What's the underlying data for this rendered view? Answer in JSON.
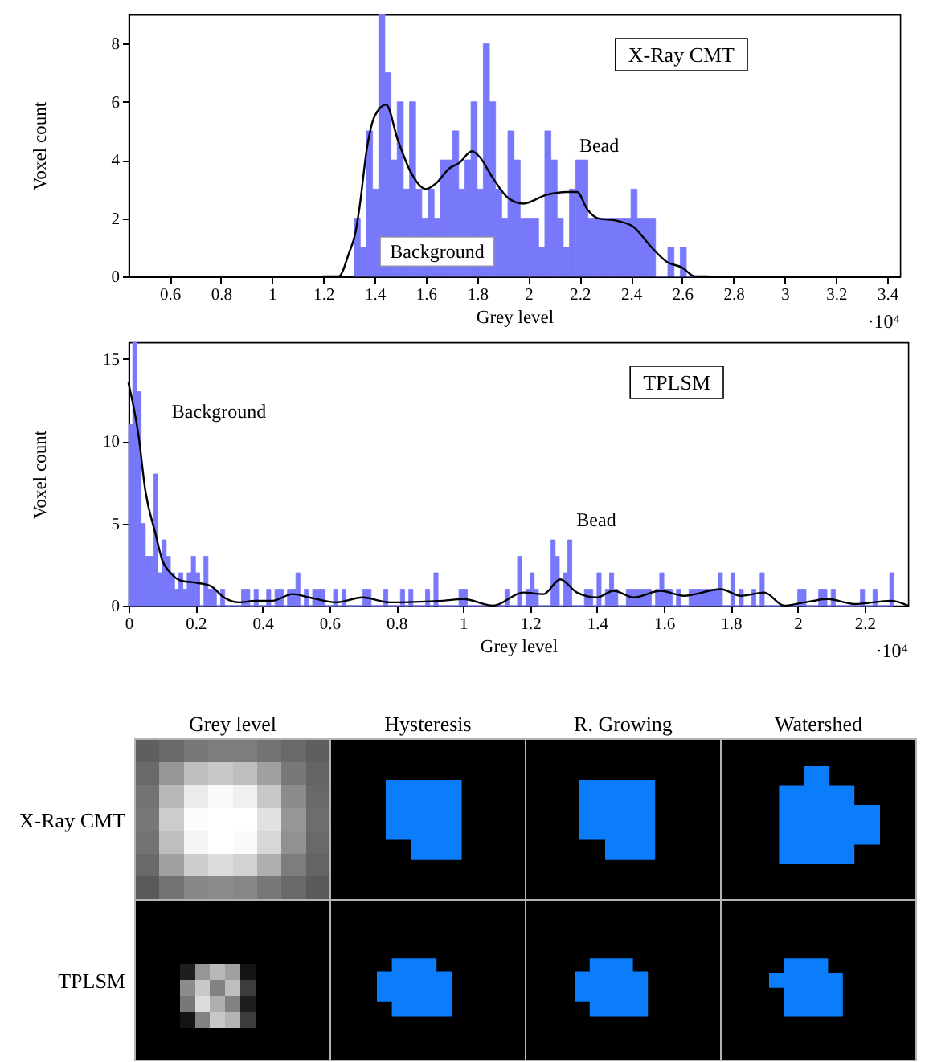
{
  "chart_data": [
    {
      "type": "histogram",
      "xlabel": "Grey level",
      "ylabel": "Voxel count",
      "xlim": [
        0.44,
        3.45
      ],
      "ylim": [
        0,
        9
      ],
      "xticks": [
        0.6,
        0.8,
        1,
        1.2,
        1.4,
        1.6,
        1.8,
        2,
        2.2,
        2.4,
        2.6,
        2.8,
        3,
        3.2,
        3.4
      ],
      "yticks": [
        0,
        2,
        4,
        6,
        8
      ],
      "bins": [
        1.32,
        1.344,
        1.368,
        1.392,
        1.416,
        1.44,
        1.464,
        1.488,
        1.512,
        1.536,
        1.56,
        1.584,
        1.608,
        1.632,
        1.656,
        1.68,
        1.704,
        1.728,
        1.752,
        1.776,
        1.8,
        1.824,
        1.848,
        1.872,
        1.896,
        1.92,
        1.944,
        1.968,
        1.992,
        2.016,
        2.04,
        2.064,
        2.088,
        2.112,
        2.136,
        2.16,
        2.184,
        2.208,
        2.232,
        2.256,
        2.28,
        2.304,
        2.328,
        2.352,
        2.376,
        2.4,
        2.424,
        2.448,
        2.472,
        2.496,
        2.52,
        2.544,
        2.568,
        2.592,
        2.616,
        2.64
      ],
      "series": [
        {
          "type": "histogram",
          "color": "#7878fa",
          "values": [
            2,
            1,
            5,
            3,
            9,
            7,
            4,
            6,
            3,
            6,
            3,
            2,
            3,
            2,
            4,
            4,
            5,
            3,
            4,
            6,
            3,
            8,
            6,
            3,
            2,
            5,
            4,
            2,
            2,
            2,
            1,
            5,
            4,
            2,
            1,
            3,
            4,
            4,
            2,
            2,
            2,
            2,
            2,
            2,
            2,
            3,
            2,
            2,
            2,
            0,
            0,
            1,
            0,
            1,
            0
          ]
        },
        {
          "type": "line",
          "color": "#000000",
          "x": [
            1.2,
            1.26,
            1.3,
            1.325,
            1.34,
            1.37,
            1.4,
            1.445,
            1.49,
            1.54,
            1.6,
            1.64,
            1.69,
            1.73,
            1.78,
            1.81,
            1.86,
            1.92,
            1.98,
            2.07,
            2.15,
            2.19,
            2.23,
            2.27,
            2.35,
            2.41,
            2.48,
            2.54,
            2.6,
            2.65,
            2.7
          ],
          "values": [
            0,
            0,
            0.8,
            1.5,
            2.3,
            4.4,
            5.5,
            5.9,
            4.7,
            3.6,
            3.0,
            3.2,
            3.7,
            3.9,
            4.3,
            4.1,
            3.4,
            2.7,
            2.5,
            2.8,
            2.9,
            2.9,
            2.3,
            2.0,
            1.9,
            1.7,
            1.0,
            0.5,
            0.3,
            0,
            0
          ]
        }
      ],
      "annotations": [
        "X-Ray CMT",
        "Bead",
        "Background",
        "·10⁴"
      ]
    },
    {
      "type": "histogram",
      "xlabel": "Grey level",
      "ylabel": "Voxel count",
      "xlim": [
        0,
        2.33
      ],
      "ylim": [
        0,
        16
      ],
      "xticks": [
        0,
        0.2,
        0.4,
        0.6,
        0.8,
        1,
        1.2,
        1.4,
        1.6,
        1.8,
        2,
        2.2
      ],
      "yticks": [
        0,
        5,
        10,
        15
      ],
      "bins": [
        0,
        0.0125,
        0.025,
        0.0375,
        0.05,
        0.0625,
        0.075,
        0.0875,
        0.1,
        0.1125,
        0.125,
        0.1375,
        0.15,
        0.1625,
        0.175,
        0.1875,
        0.2,
        0.2125,
        0.225,
        0.2375,
        0.25,
        0.2625,
        0.275,
        0.2875,
        0.3,
        0.3125,
        0.325,
        0.3375,
        0.35,
        0.3625,
        0.375,
        0.3875,
        0.4,
        0.4125,
        0.425,
        0.4375,
        0.45,
        0.4625,
        0.475,
        0.4875,
        0.5,
        0.5125,
        0.525,
        0.5375,
        0.55,
        0.5625,
        0.575,
        0.5875,
        0.6,
        0.6125,
        0.625,
        0.6375,
        0.65,
        0.6625,
        0.675,
        0.6875,
        0.7,
        0.7125,
        0.725,
        0.7375,
        0.75,
        0.7625,
        0.775,
        0.7875,
        0.8,
        0.8125,
        0.825,
        0.8375,
        0.85,
        0.8625,
        0.875,
        0.8875,
        0.9,
        0.9125,
        0.925,
        0.9375,
        0.95,
        0.9625,
        0.975,
        0.9875,
        1,
        1.0125,
        1.025,
        1.0375,
        1.05,
        1.0625,
        1.075,
        1.0875,
        1.1,
        1.1125,
        1.125,
        1.1375,
        1.15,
        1.1625,
        1.175,
        1.1875,
        1.2,
        1.2125,
        1.225,
        1.2375,
        1.25,
        1.2625,
        1.275,
        1.2875,
        1.3,
        1.3125,
        1.325,
        1.3375,
        1.35,
        1.3625,
        1.375,
        1.3875,
        1.4,
        1.4125,
        1.425,
        1.4375,
        1.45,
        1.4625,
        1.475,
        1.4875,
        1.5,
        1.5125,
        1.525,
        1.5375,
        1.55,
        1.5625,
        1.575,
        1.5875,
        1.6,
        1.6125,
        1.625,
        1.6375,
        1.65,
        1.6625,
        1.675,
        1.6875,
        1.7,
        1.7125,
        1.725,
        1.7375,
        1.75,
        1.7625,
        1.775,
        1.7875,
        1.8,
        1.8125,
        1.825,
        1.8375,
        1.85,
        1.8625,
        1.875,
        1.8875,
        1.9,
        1.9125,
        1.925,
        1.9375,
        1.95,
        1.9625,
        1.975,
        1.9875,
        2,
        2.0125,
        2.025,
        2.0375,
        2.05,
        2.0625,
        2.075,
        2.0875,
        2.1,
        2.1125,
        2.125,
        2.1375,
        2.15,
        2.1625,
        2.175,
        2.1875,
        2.2,
        2.2125,
        2.225,
        2.2375,
        2.25,
        2.2625,
        2.275,
        2.2875
      ],
      "series": [
        {
          "type": "histogram",
          "color": "#7878fa",
          "values": [
            11,
            16,
            13,
            5,
            3,
            3,
            8,
            2,
            4,
            3,
            2,
            1,
            2,
            1,
            2,
            3,
            2,
            0,
            3,
            1,
            1,
            0,
            1,
            0,
            0,
            0,
            0,
            1,
            1,
            0,
            1,
            0,
            0,
            1,
            0,
            1,
            1,
            0,
            1,
            1,
            2,
            0,
            1,
            0,
            1,
            1,
            1,
            0,
            0,
            1,
            0,
            1,
            0,
            0,
            0,
            0,
            1,
            1,
            0,
            0,
            0,
            1,
            0,
            0,
            0,
            1,
            0,
            1,
            0,
            0,
            0,
            1,
            0,
            2,
            0,
            0,
            0,
            0,
            0,
            1,
            1,
            0,
            0,
            0,
            0,
            0,
            0,
            0,
            0,
            0,
            1,
            0,
            0,
            3,
            0,
            1,
            2,
            1,
            0,
            0,
            0,
            4,
            3,
            0,
            2,
            4,
            0,
            0,
            0,
            1,
            1,
            0,
            2,
            0,
            1,
            2,
            1,
            0,
            0,
            1,
            1,
            1,
            1,
            1,
            1,
            0,
            1,
            2,
            1,
            1,
            0,
            1,
            0,
            0,
            1,
            1,
            1,
            1,
            1,
            1,
            1,
            2,
            0,
            0,
            2,
            0,
            1,
            0,
            0,
            1,
            0,
            2,
            0,
            0,
            0,
            0,
            0,
            0,
            0,
            0,
            1,
            1,
            0,
            0,
            0,
            1,
            1,
            0,
            1,
            0,
            0,
            0,
            0,
            0,
            0,
            1,
            0,
            0,
            1,
            0,
            0,
            0,
            2
          ]
        },
        {
          "type": "line",
          "color": "#000000",
          "x": [
            0,
            0.03,
            0.05,
            0.08,
            0.1,
            0.125,
            0.16,
            0.2,
            0.245,
            0.285,
            0.33,
            0.38,
            0.43,
            0.49,
            0.54,
            0.62,
            0.7,
            0.78,
            0.94,
            1.0,
            1.09,
            1.18,
            1.24,
            1.29,
            1.34,
            1.4,
            1.45,
            1.51,
            1.59,
            1.66,
            1.77,
            1.83,
            1.9,
            1.96,
            2.02,
            2.09,
            2.17,
            2.28,
            2.33
          ],
          "values": [
            13.5,
            10.3,
            7.0,
            4.4,
            2.8,
            2.0,
            1.5,
            1.4,
            1.2,
            0.5,
            0.2,
            0.3,
            0.3,
            0.7,
            0.5,
            0.2,
            0.5,
            0.2,
            0.3,
            0.4,
            0,
            0.8,
            0.7,
            1.6,
            0.8,
            0.5,
            0.9,
            0.5,
            0.9,
            0.6,
            1.0,
            0.6,
            0.8,
            0,
            0.2,
            0.4,
            0.1,
            0.3,
            0
          ]
        }
      ],
      "annotations": [
        "TPLSM",
        "Background",
        "Bead",
        "·10⁴"
      ]
    },
    {
      "type": "other",
      "categories": [
        "Grey level",
        "Hysteresis",
        "R. Growing",
        "Watershed"
      ],
      "y_categories": [
        "X-Ray CMT",
        "TPLSM"
      ]
    }
  ]
}
